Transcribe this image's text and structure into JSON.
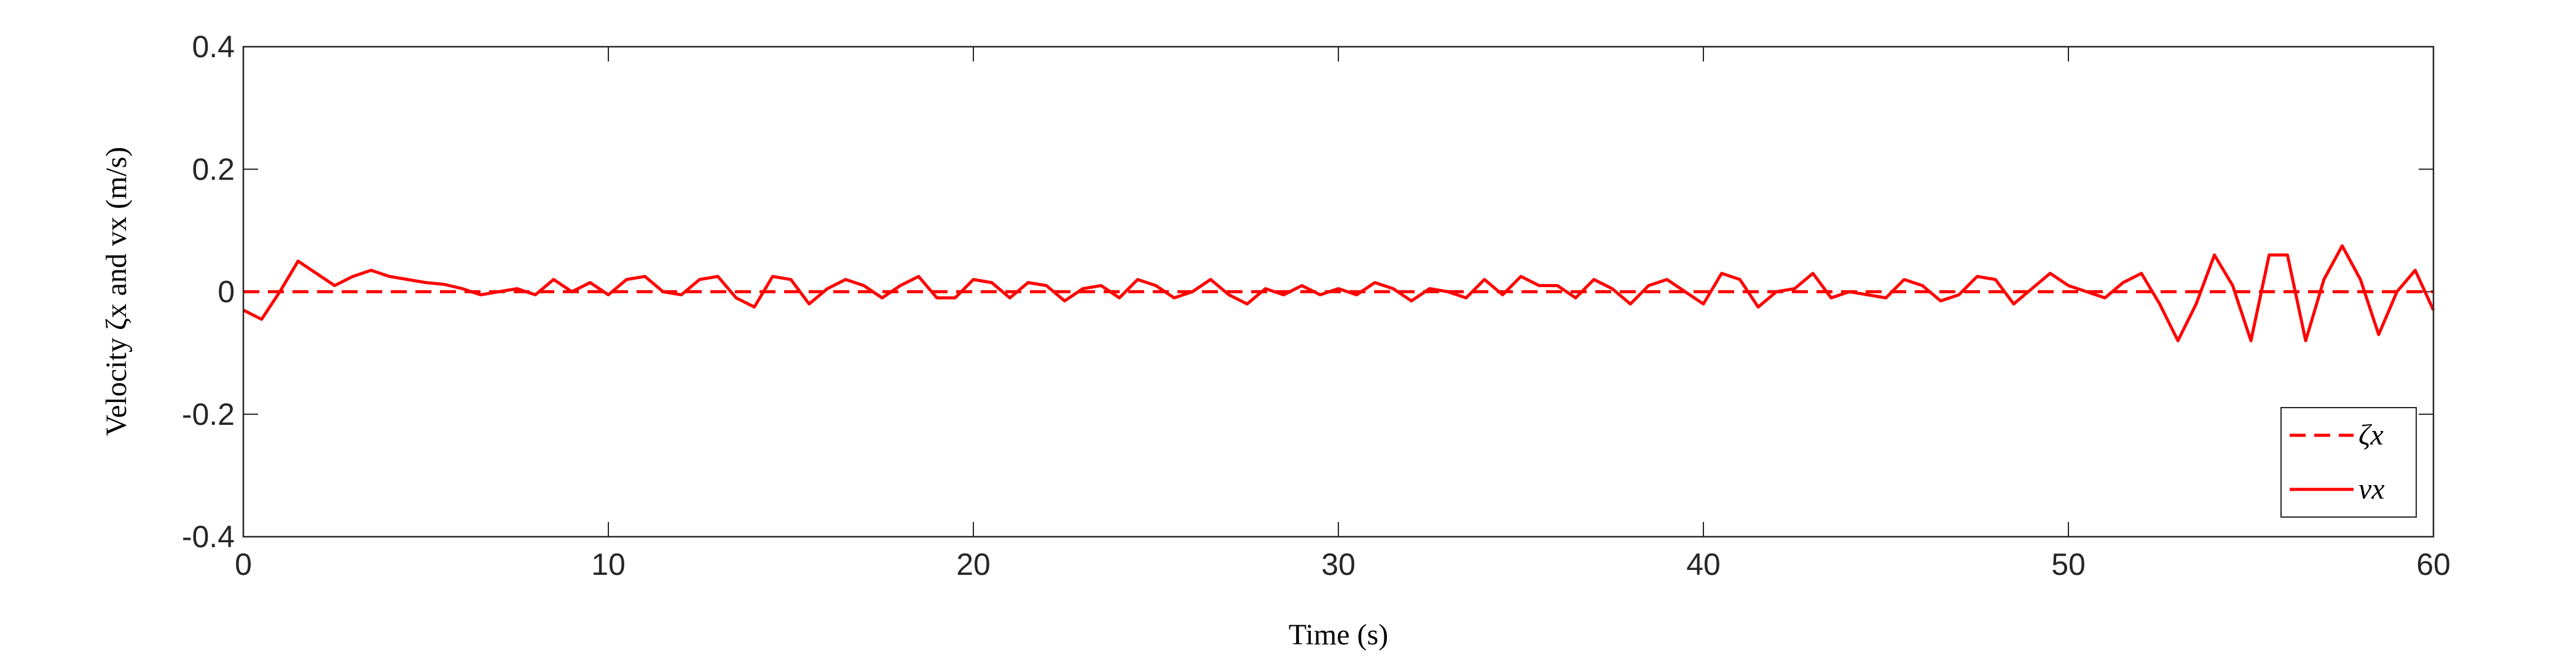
{
  "chart_data": {
    "type": "line",
    "xlabel": "Time (s)",
    "ylabel": "Velocity ζx and vx (m/s)",
    "xlim": [
      0,
      60
    ],
    "ylim": [
      -0.4,
      0.4
    ],
    "xticks": [
      0,
      10,
      20,
      30,
      40,
      50,
      60
    ],
    "yticks": [
      -0.4,
      -0.2,
      0,
      0.2,
      0.4
    ],
    "grid": false,
    "legend": "lower right",
    "x": [
      0,
      0.5,
      1,
      1.5,
      2,
      2.5,
      3,
      3.5,
      4,
      4.5,
      5,
      5.5,
      6,
      6.5,
      7,
      7.5,
      8,
      8.5,
      9,
      9.5,
      10,
      10.5,
      11,
      11.5,
      12,
      12.5,
      13,
      13.5,
      14,
      14.5,
      15,
      15.5,
      16,
      16.5,
      17,
      17.5,
      18,
      18.5,
      19,
      19.5,
      20,
      20.5,
      21,
      21.5,
      22,
      22.5,
      23,
      23.5,
      24,
      24.5,
      25,
      25.5,
      26,
      26.5,
      27,
      27.5,
      28,
      28.5,
      29,
      29.5,
      30,
      30.5,
      31,
      31.5,
      32,
      32.5,
      33,
      33.5,
      34,
      34.5,
      35,
      35.5,
      36,
      36.5,
      37,
      37.5,
      38,
      38.5,
      39,
      39.5,
      40,
      40.5,
      41,
      41.5,
      42,
      42.5,
      43,
      43.5,
      44,
      44.5,
      45,
      45.5,
      46,
      46.5,
      47,
      47.5,
      48,
      48.5,
      49,
      49.5,
      50,
      50.5,
      51,
      51.5,
      52,
      52.5,
      53,
      53.5,
      54,
      54.5,
      55,
      55.5,
      56,
      56.5,
      57,
      57.5,
      58,
      58.5,
      59,
      59.5,
      60
    ],
    "series": [
      {
        "name": "ζx",
        "color": "#ff0000",
        "dashed": true,
        "x": [
          0,
          60
        ],
        "values": [
          0,
          0
        ]
      },
      {
        "name": "vx",
        "color": "#ff0000",
        "dashed": false,
        "values": [
          -0.03,
          -0.045,
          0.0,
          0.05,
          0.03,
          0.01,
          0.025,
          0.035,
          0.025,
          0.02,
          0.015,
          0.012,
          0.005,
          -0.005,
          0.0,
          0.005,
          -0.005,
          0.02,
          0.0,
          0.015,
          -0.005,
          0.02,
          0.025,
          0.0,
          -0.005,
          0.02,
          0.025,
          -0.01,
          -0.025,
          0.025,
          0.02,
          -0.02,
          0.005,
          0.02,
          0.01,
          -0.01,
          0.01,
          0.025,
          -0.01,
          -0.01,
          0.02,
          0.015,
          -0.01,
          0.015,
          0.01,
          -0.015,
          0.005,
          0.01,
          -0.01,
          0.02,
          0.01,
          -0.01,
          0.0,
          0.02,
          -0.005,
          -0.02,
          0.005,
          -0.005,
          0.01,
          -0.005,
          0.005,
          -0.005,
          0.015,
          0.005,
          -0.015,
          0.005,
          0.0,
          -0.01,
          0.02,
          -0.005,
          0.025,
          0.01,
          0.01,
          -0.01,
          0.02,
          0.005,
          -0.02,
          0.01,
          0.02,
          0.0,
          -0.02,
          0.03,
          0.02,
          -0.025,
          0.0,
          0.005,
          0.03,
          -0.01,
          0.0,
          -0.005,
          -0.01,
          0.02,
          0.01,
          -0.015,
          -0.005,
          0.025,
          0.02,
          -0.02,
          0.005,
          0.03,
          0.01,
          0.0,
          -0.01,
          0.015,
          0.03,
          -0.02,
          -0.08,
          -0.02,
          0.06,
          0.01,
          -0.08,
          0.06,
          0.06,
          -0.08,
          0.02,
          0.075,
          0.02,
          -0.07,
          0.0,
          0.035,
          -0.03
        ]
      }
    ]
  }
}
